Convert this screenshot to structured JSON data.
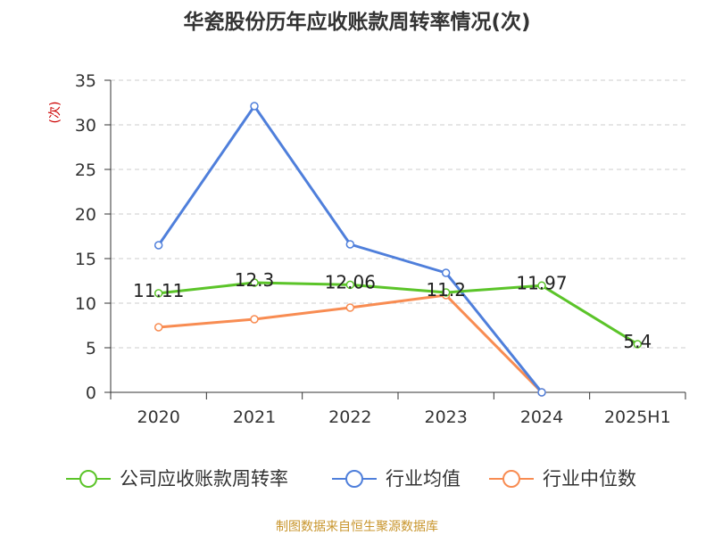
{
  "chart_data": {
    "type": "line",
    "title": "华瓷股份历年应收账款周转率情况(次)",
    "ylabel": "(次)",
    "xlabel": "",
    "categories": [
      "2020",
      "2021",
      "2022",
      "2023",
      "2024",
      "2025H1"
    ],
    "ylim": [
      0,
      35
    ],
    "yticks": [
      0,
      5,
      10,
      15,
      20,
      25,
      30,
      35
    ],
    "grid": true,
    "legend_position": "bottom",
    "series": [
      {
        "name": "公司应收账款周转率",
        "color": "#5bc429",
        "values": [
          11.11,
          12.3,
          12.06,
          11.2,
          11.97,
          5.4
        ],
        "labels": [
          "11.11",
          "12.3",
          "12.06",
          "11.2",
          "11.97",
          "5.4"
        ]
      },
      {
        "name": "行业均值",
        "color": "#4f7fdb",
        "values": [
          16.5,
          32.1,
          16.6,
          13.4,
          0,
          null
        ]
      },
      {
        "name": "行业中位数",
        "color": "#f88c52",
        "values": [
          7.3,
          8.2,
          9.5,
          10.9,
          0,
          null
        ]
      }
    ],
    "source": "制图数据来自恒生聚源数据库"
  }
}
